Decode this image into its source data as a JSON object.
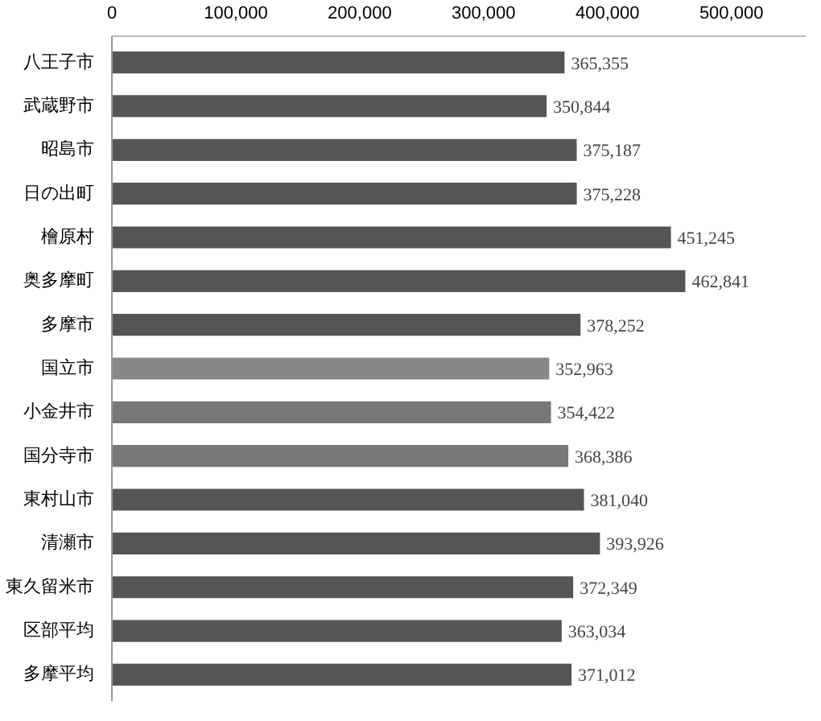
{
  "chart_data": {
    "type": "bar",
    "orientation": "horizontal",
    "categories": [
      "八王子市",
      "武蔵野市",
      "昭島市",
      "日の出町",
      "檜原村",
      "奥多摩町",
      "多摩市",
      "国立市",
      "小金井市",
      "国分寺市",
      "東村山市",
      "清瀬市",
      "東久留米市",
      "区部平均",
      "多摩平均"
    ],
    "values": [
      365355,
      350844,
      375187,
      375228,
      451245,
      462841,
      378252,
      352963,
      354422,
      368386,
      381040,
      393926,
      372349,
      363034,
      371012
    ],
    "colors": [
      "#555555",
      "#555555",
      "#555555",
      "#555555",
      "#555555",
      "#555555",
      "#555555",
      "#888888",
      "#777777",
      "#777777",
      "#555555",
      "#555555",
      "#555555",
      "#555555",
      "#555555"
    ],
    "xlim": [
      0,
      560000
    ],
    "xticks": [
      0,
      {
        "value": 100000,
        "label": "100,000"
      },
      {
        "value": 200000,
        "label": "200,000"
      },
      {
        "value": 300000,
        "label": "300,000"
      },
      {
        "value": 400000,
        "label": "400,000"
      },
      {
        "value": 500000,
        "label": "500,000"
      }
    ],
    "grid": false,
    "value_labels": [
      "365,355",
      "350,844",
      "375,187",
      "375,228",
      "451,245",
      "462,841",
      "378,252",
      "352,963",
      "354,422",
      "368,386",
      "381,040",
      "393,926",
      "372,349",
      "363,034",
      "371,012"
    ]
  }
}
